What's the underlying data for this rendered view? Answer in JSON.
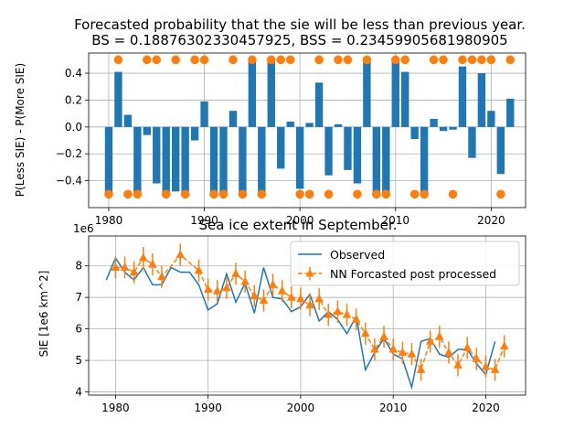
{
  "chart_data": [
    {
      "type": "bar",
      "title_line1": "Forecasted probability that the sie will be less than previous year.",
      "title_line2": "BS = 0.18876302330457925, BSS = 0.23459905681980905",
      "xlabel": "",
      "ylabel": "P(Less SIE) - P(More SIE)",
      "xlim": [
        1977.9,
        2023.6
      ],
      "ylim": [
        -0.6,
        0.55
      ],
      "xticks": [
        1980,
        1990,
        2000,
        2010,
        2020
      ],
      "yticks": [
        0.4,
        0.2,
        0.0,
        -0.2,
        -0.4
      ],
      "grid": true,
      "colors": {
        "bars": "#1f77b4",
        "dots": "#ff7f0e"
      },
      "series": [
        {
          "kind": "bars",
          "x": [
            1980,
            1981,
            1982,
            1983,
            1984,
            1985,
            1986,
            1987,
            1988,
            1989,
            1990,
            1991,
            1992,
            1993,
            1994,
            1995,
            1996,
            1997,
            1998,
            1999,
            2000,
            2001,
            2002,
            2003,
            2004,
            2005,
            2006,
            2007,
            2008,
            2009,
            2010,
            2011,
            2012,
            2013,
            2014,
            2015,
            2016,
            2017,
            2018,
            2019,
            2020,
            2021,
            2022
          ],
          "values": [
            -0.49,
            0.41,
            0.09,
            -0.5,
            -0.06,
            -0.42,
            -0.5,
            -0.48,
            -0.5,
            -0.1,
            0.19,
            -0.5,
            -0.5,
            0.12,
            -0.5,
            0.49,
            -0.5,
            0.49,
            -0.31,
            0.04,
            -0.46,
            0.03,
            0.33,
            -0.36,
            0.02,
            -0.32,
            -0.42,
            0.49,
            -0.5,
            -0.5,
            0.49,
            0.41,
            -0.09,
            -0.5,
            0.06,
            -0.03,
            -0.02,
            0.45,
            -0.23,
            0.4,
            0.12,
            -0.35,
            0.21
          ]
        },
        {
          "kind": "outcomes",
          "x": [
            1980,
            1981,
            1982,
            1983,
            1984,
            1985,
            1986,
            1987,
            1988,
            1989,
            1990,
            1991,
            1992,
            1993,
            1994,
            1995,
            1996,
            1997,
            1998,
            1999,
            2000,
            2001,
            2002,
            2003,
            2004,
            2005,
            2006,
            2007,
            2008,
            2009,
            2010,
            2011,
            2012,
            2013,
            2014,
            2015,
            2016,
            2017,
            2018,
            2019,
            2020,
            2021,
            2022
          ],
          "values": [
            -0.5,
            0.5,
            -0.5,
            -0.5,
            0.5,
            0.5,
            -0.5,
            0.5,
            -0.5,
            0.5,
            0.5,
            -0.5,
            -0.5,
            0.5,
            -0.5,
            0.5,
            -0.5,
            0.5,
            0.5,
            0.5,
            -0.5,
            -0.5,
            0.5,
            -0.5,
            0.5,
            0.5,
            -0.5,
            0.5,
            -0.5,
            -0.5,
            0.5,
            0.5,
            -0.5,
            -0.5,
            0.5,
            0.5,
            -0.5,
            0.5,
            0.5,
            0.5,
            0.5,
            -0.5,
            0.5
          ]
        }
      ]
    },
    {
      "type": "line",
      "title": "Sea ice extent in September.",
      "xlabel": "",
      "ylabel": "SIE [1e6 km^2]",
      "offset_label": "1e6",
      "xlim": [
        1977.1,
        2024.3
      ],
      "ylim": [
        3.9,
        8.95
      ],
      "xticks": [
        1980,
        1990,
        2000,
        2010,
        2020
      ],
      "yticks": [
        8,
        7,
        6,
        5,
        4
      ],
      "grid": true,
      "legend_position": "top-right",
      "series": [
        {
          "name": "Observed",
          "color": "#1f77b4",
          "x": [
            1979,
            1980,
            1981,
            1982,
            1983,
            1984,
            1985,
            1986,
            1987,
            1988,
            1989,
            1990,
            1991,
            1992,
            1993,
            1994,
            1995,
            1996,
            1997,
            1998,
            1999,
            2000,
            2001,
            2002,
            2003,
            2004,
            2005,
            2006,
            2007,
            2008,
            2009,
            2010,
            2011,
            2012,
            2013,
            2014,
            2015,
            2016,
            2017,
            2018,
            2019,
            2020,
            2021
          ],
          "values": [
            7.55,
            8.25,
            7.8,
            7.55,
            7.95,
            7.4,
            7.4,
            7.95,
            7.8,
            7.8,
            7.4,
            6.6,
            6.8,
            7.75,
            6.85,
            7.45,
            6.5,
            7.95,
            7.0,
            6.95,
            6.55,
            6.7,
            7.1,
            6.25,
            6.55,
            6.3,
            5.85,
            6.4,
            4.7,
            5.25,
            5.7,
            5.2,
            5.05,
            4.15,
            5.6,
            5.7,
            5.2,
            5.1,
            5.35,
            5.35,
            4.9,
            4.55,
            5.6
          ]
        },
        {
          "name": "NN Forcasted post processed",
          "color": "#ff7f0e",
          "x": [
            1980,
            1981,
            1982,
            1983,
            1984,
            1985,
            1987,
            1989,
            1990,
            1991,
            1992,
            1993,
            1994,
            1995,
            1996,
            1997,
            1998,
            1999,
            2000,
            2001,
            2002,
            2003,
            2004,
            2005,
            2006,
            2007,
            2008,
            2009,
            2010,
            2011,
            2012,
            2013,
            2014,
            2015,
            2016,
            2017,
            2018,
            2019,
            2020,
            2021,
            2022
          ],
          "values": [
            7.95,
            7.95,
            7.8,
            8.25,
            8.05,
            7.65,
            8.35,
            7.85,
            7.25,
            7.2,
            7.3,
            7.75,
            7.5,
            7.05,
            6.9,
            7.4,
            7.2,
            7.0,
            6.95,
            6.75,
            6.95,
            6.45,
            6.55,
            6.45,
            6.3,
            5.85,
            5.35,
            5.75,
            5.35,
            5.25,
            5.2,
            4.7,
            5.6,
            5.75,
            5.25,
            4.85,
            5.4,
            5.05,
            4.8,
            4.7,
            5.45
          ],
          "error": 0.35
        }
      ]
    }
  ]
}
